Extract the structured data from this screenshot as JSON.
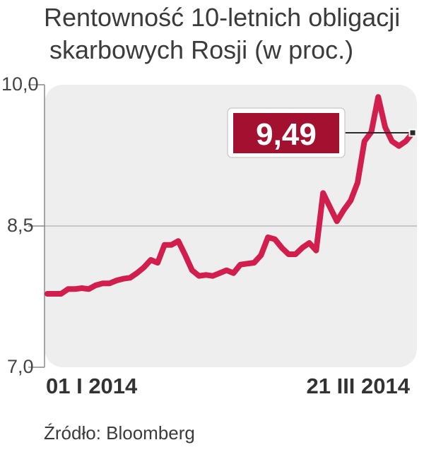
{
  "header": {
    "title_line1": "Rentowność 10-letnich obligacji",
    "title_line2": "skarbowych Rosji (w proc.)"
  },
  "footer": {
    "source": "Źródło: Bloomberg"
  },
  "colors": {
    "line": "#d21e4c",
    "callout_bg": "#a4102f",
    "plot_bg": "#eeeeee",
    "grid": "#c8c8c8"
  },
  "chart_data": {
    "type": "line",
    "title": "Rentowność 10-letnich obligacji skarbowych Rosji (w proc.)",
    "xlabel": "",
    "ylabel": "",
    "ylim": [
      7.0,
      10.0
    ],
    "yticks": [
      "10,0",
      "8,5",
      "7,0"
    ],
    "ytick_values": [
      10.0,
      8.5,
      7.0
    ],
    "xlabels": [
      "01 I 2014",
      "21 III 2014"
    ],
    "x_range": [
      "2014-01-01",
      "2014-03-21"
    ],
    "grid": "horizontal at 8,5",
    "callout": {
      "label": "9,49",
      "value": 9.49
    },
    "series": [
      {
        "values": [
          7.78,
          7.78,
          7.78,
          7.83,
          7.83,
          7.84,
          7.83,
          7.87,
          7.89,
          7.89,
          7.92,
          7.94,
          7.95,
          8.0,
          8.06,
          8.14,
          8.11,
          8.3,
          8.3,
          8.34,
          8.19,
          8.03,
          7.97,
          7.98,
          7.97,
          8.0,
          8.03,
          8.0,
          8.09,
          8.1,
          8.11,
          8.19,
          8.38,
          8.36,
          8.27,
          8.2,
          8.2,
          8.27,
          8.32,
          8.24,
          8.85,
          8.7,
          8.55,
          8.67,
          8.77,
          8.96,
          9.4,
          9.5,
          9.87,
          9.55,
          9.4,
          9.35,
          9.4,
          9.49
        ]
      }
    ]
  }
}
